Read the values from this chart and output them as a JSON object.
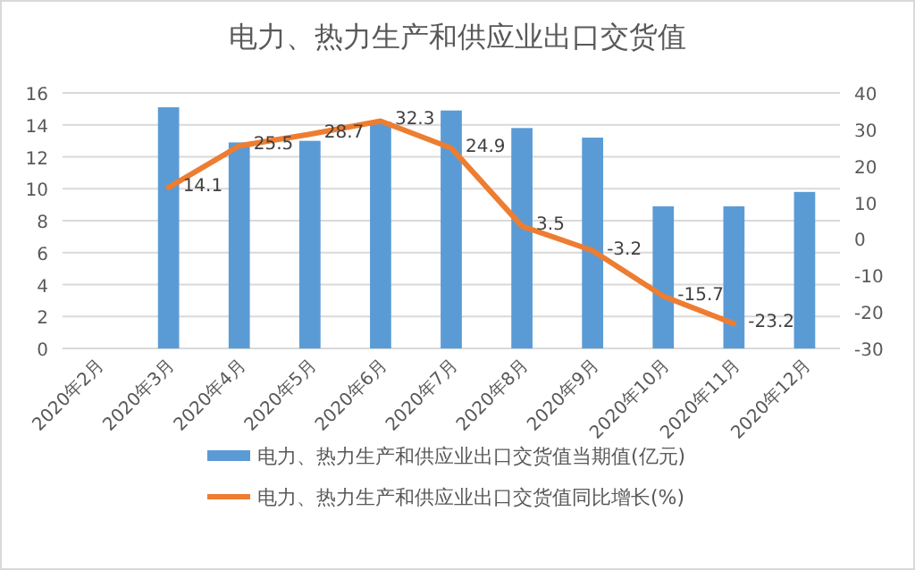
{
  "chart_data": {
    "type": "bar",
    "title": "电力、热力生产和供应业出口交货值",
    "categories": [
      "2020年2月",
      "2020年3月",
      "2020年4月",
      "2020年5月",
      "2020年6月",
      "2020年7月",
      "2020年8月",
      "2020年9月",
      "2020年10月",
      "2020年11月",
      "2020年12月"
    ],
    "series": [
      {
        "name": "电力、热力生产和供应业出口交货值当期值(亿元)",
        "color": "#5b9bd5",
        "values": [
          null,
          15.1,
          12.9,
          13.0,
          14.2,
          14.9,
          13.8,
          13.2,
          8.9,
          8.9,
          9.8
        ]
      },
      {
        "name": "电力、热力生产和供应业出口交货值同比增长(%)",
        "type": "line",
        "axis": "y2",
        "color": "#ed7d31",
        "values": [
          null,
          14.1,
          25.5,
          28.7,
          32.3,
          24.9,
          3.5,
          -3.2,
          -15.7,
          -23.2,
          null
        ],
        "value_labels": [
          null,
          "14.1",
          "25.5",
          "28.7",
          "32.3",
          "24.9",
          "3.5",
          "-3.2",
          "-15.7",
          "-23.2",
          null
        ]
      }
    ],
    "ylim": [
      0,
      16
    ],
    "yticks": [
      0,
      2,
      4,
      6,
      8,
      10,
      12,
      14,
      16
    ],
    "y2lim": [
      -30,
      40
    ],
    "y2ticks": [
      -30,
      -20,
      -10,
      0,
      10,
      20,
      30,
      40
    ],
    "grid": "y",
    "legend": "bottom",
    "marker": "none"
  }
}
